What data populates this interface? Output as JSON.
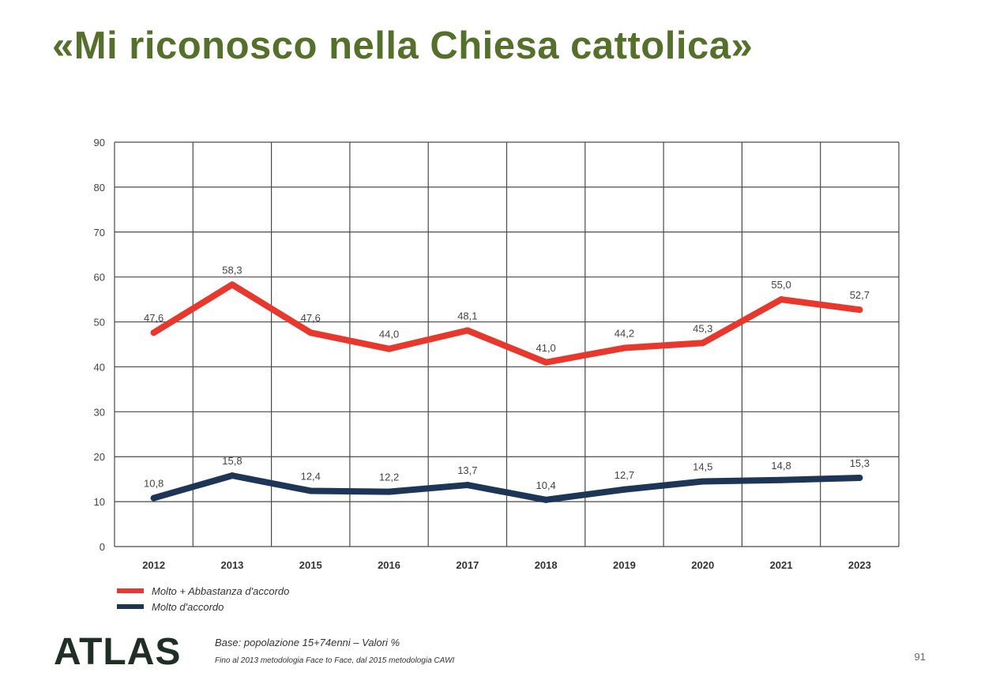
{
  "colors": {
    "title": "#55702a",
    "series_primary": "#e8382d",
    "series_secondary": "#1d3557",
    "grid": "#4a4a4a"
  },
  "title": "«Mi riconosco nella Chiesa cattolica»",
  "chart_data": {
    "type": "line",
    "title": "«Mi riconosco nella Chiesa cattolica»",
    "categories": [
      "2012",
      "2013",
      "2015",
      "2016",
      "2017",
      "2018",
      "2019",
      "2020",
      "2021",
      "2023"
    ],
    "series": [
      {
        "name": "Molto + Abbastanza d'accordo",
        "values": [
          47.6,
          58.3,
          47.6,
          44.0,
          48.1,
          41.0,
          44.2,
          45.3,
          55.0,
          52.7
        ],
        "labels": [
          "47,6",
          "58,3",
          "47,6",
          "44,0",
          "48,1",
          "41,0",
          "44,2",
          "45,3",
          "55,0",
          "52,7"
        ],
        "color": "#e8382d"
      },
      {
        "name": "Molto d'accordo",
        "values": [
          10.8,
          15.8,
          12.4,
          12.2,
          13.7,
          10.4,
          12.7,
          14.5,
          14.8,
          15.3
        ],
        "labels": [
          "10,8",
          "15,8",
          "12,4",
          "12,2",
          "13,7",
          "10,4",
          "12,7",
          "14,5",
          "14,8",
          "15,3"
        ],
        "color": "#1d3557"
      }
    ],
    "ylim": [
      0,
      90
    ],
    "yticks": [
      0,
      10,
      20,
      30,
      40,
      50,
      60,
      70,
      80,
      90
    ],
    "grid": true,
    "legend": "bottom-left"
  },
  "legend": {
    "primary": "Molto + Abbastanza d'accordo",
    "secondary": "Molto d'accordo"
  },
  "footer": {
    "logo": "ATLAS",
    "base_note": "Base: popolazione 15+74enni – Valori %",
    "method_note": "Fino al 2013 metodologia Face to Face, dal 2015 metodologia CAWI",
    "page_number": "91"
  }
}
